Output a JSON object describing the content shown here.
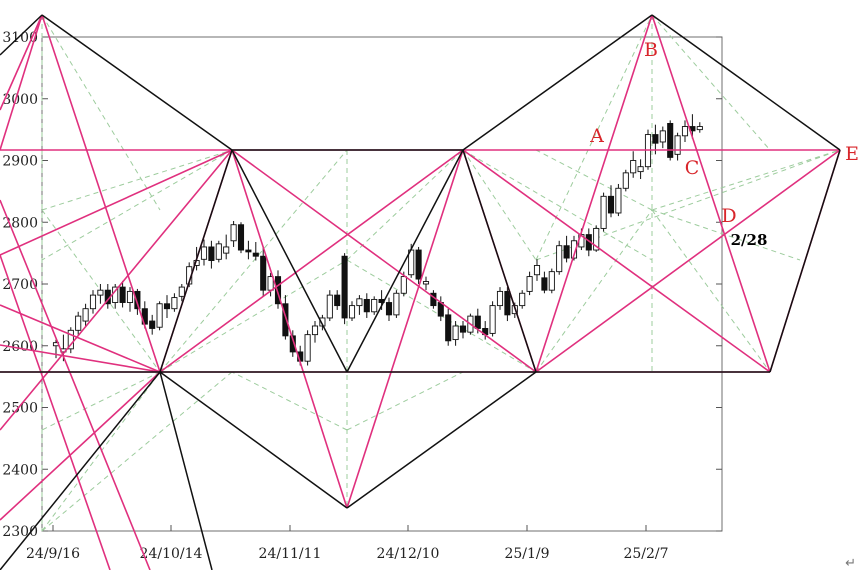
{
  "chart_data": {
    "type": "candlestick",
    "title": "",
    "y_ticks": [
      "3100",
      "3000",
      "2900",
      "2800",
      "2700",
      "2600",
      "2500",
      "2400",
      "2300"
    ],
    "x_ticks": [
      "24/9/16",
      "24/10/14",
      "24/11/11",
      "24/12/10",
      "25/1/9",
      "25/2/7"
    ],
    "ylim": [
      2300,
      3100
    ],
    "grid": false,
    "annotations": [
      {
        "label": "A",
        "price": 2935
      },
      {
        "label": "B",
        "price": 3080
      },
      {
        "label": "C",
        "price": 2890
      },
      {
        "label": "D",
        "price": 2808
      },
      {
        "label": "E",
        "price": 2915
      },
      {
        "label": "2/28",
        "price": 2785
      }
    ],
    "series": [
      {
        "candles": [
          [
            2600,
            2610,
            2580,
            2605
          ],
          [
            2590,
            2618,
            2575,
            2595
          ],
          [
            2595,
            2630,
            2588,
            2625
          ],
          [
            2625,
            2655,
            2618,
            2648
          ],
          [
            2640,
            2668,
            2630,
            2660
          ],
          [
            2660,
            2690,
            2652,
            2682
          ],
          [
            2682,
            2700,
            2668,
            2690
          ],
          [
            2690,
            2700,
            2660,
            2668
          ],
          [
            2670,
            2700,
            2660,
            2695
          ],
          [
            2695,
            2705,
            2662,
            2670
          ],
          [
            2670,
            2695,
            2655,
            2688
          ],
          [
            2688,
            2692,
            2650,
            2660
          ],
          [
            2660,
            2672,
            2628,
            2635
          ],
          [
            2640,
            2650,
            2618,
            2628
          ],
          [
            2630,
            2672,
            2625,
            2668
          ],
          [
            2668,
            2682,
            2645,
            2660
          ],
          [
            2660,
            2685,
            2655,
            2678
          ],
          [
            2680,
            2700,
            2672,
            2695
          ],
          [
            2700,
            2735,
            2695,
            2728
          ],
          [
            2730,
            2760,
            2722,
            2738
          ],
          [
            2740,
            2772,
            2730,
            2760
          ],
          [
            2760,
            2770,
            2725,
            2738
          ],
          [
            2740,
            2770,
            2735,
            2765
          ],
          [
            2750,
            2780,
            2740,
            2760
          ],
          [
            2770,
            2802,
            2760,
            2796
          ],
          [
            2796,
            2800,
            2750,
            2755
          ],
          [
            2755,
            2770,
            2740,
            2752
          ],
          [
            2750,
            2768,
            2738,
            2745
          ],
          [
            2745,
            2760,
            2680,
            2690
          ],
          [
            2690,
            2718,
            2680,
            2712
          ],
          [
            2712,
            2722,
            2660,
            2668
          ],
          [
            2668,
            2682,
            2610,
            2616
          ],
          [
            2616,
            2625,
            2582,
            2590
          ],
          [
            2590,
            2600,
            2568,
            2575
          ],
          [
            2575,
            2625,
            2568,
            2618
          ],
          [
            2618,
            2640,
            2605,
            2632
          ],
          [
            2632,
            2650,
            2625,
            2645
          ],
          [
            2645,
            2690,
            2640,
            2682
          ],
          [
            2682,
            2690,
            2658,
            2665
          ],
          [
            2745,
            2750,
            2635,
            2645
          ],
          [
            2645,
            2672,
            2640,
            2665
          ],
          [
            2665,
            2682,
            2650,
            2676
          ],
          [
            2675,
            2685,
            2645,
            2655
          ],
          [
            2655,
            2680,
            2650,
            2675
          ],
          [
            2675,
            2690,
            2658,
            2670
          ],
          [
            2670,
            2678,
            2640,
            2650
          ],
          [
            2650,
            2690,
            2645,
            2685
          ],
          [
            2685,
            2720,
            2680,
            2712
          ],
          [
            2715,
            2765,
            2710,
            2755
          ],
          [
            2755,
            2760,
            2700,
            2708
          ],
          [
            2700,
            2712,
            2690,
            2704
          ],
          [
            2685,
            2690,
            2660,
            2665
          ],
          [
            2670,
            2680,
            2640,
            2648
          ],
          [
            2650,
            2660,
            2600,
            2608
          ],
          [
            2610,
            2640,
            2600,
            2632
          ],
          [
            2632,
            2640,
            2612,
            2622
          ],
          [
            2622,
            2652,
            2618,
            2648
          ],
          [
            2648,
            2660,
            2620,
            2628
          ],
          [
            2628,
            2640,
            2610,
            2618
          ],
          [
            2620,
            2672,
            2615,
            2665
          ],
          [
            2665,
            2695,
            2658,
            2688
          ],
          [
            2688,
            2695,
            2640,
            2650
          ],
          [
            2652,
            2670,
            2645,
            2665
          ],
          [
            2665,
            2690,
            2660,
            2685
          ],
          [
            2688,
            2720,
            2682,
            2712
          ],
          [
            2715,
            2740,
            2705,
            2730
          ],
          [
            2710,
            2720,
            2685,
            2690
          ],
          [
            2690,
            2725,
            2685,
            2720
          ],
          [
            2720,
            2770,
            2715,
            2762
          ],
          [
            2762,
            2778,
            2735,
            2742
          ],
          [
            2742,
            2778,
            2738,
            2770
          ],
          [
            2760,
            2790,
            2755,
            2780
          ],
          [
            2780,
            2790,
            2745,
            2755
          ],
          [
            2755,
            2795,
            2752,
            2790
          ],
          [
            2790,
            2848,
            2785,
            2842
          ],
          [
            2842,
            2860,
            2808,
            2815
          ],
          [
            2815,
            2862,
            2810,
            2855
          ],
          [
            2855,
            2885,
            2850,
            2880
          ],
          [
            2880,
            2915,
            2872,
            2900
          ],
          [
            2882,
            2902,
            2870,
            2890
          ],
          [
            2890,
            2950,
            2885,
            2942
          ],
          [
            2942,
            2958,
            2910,
            2928
          ],
          [
            2930,
            2955,
            2920,
            2948
          ],
          [
            2960,
            2965,
            2900,
            2905
          ],
          [
            2910,
            2945,
            2900,
            2940
          ],
          [
            2940,
            2965,
            2930,
            2955
          ],
          [
            2955,
            2975,
            2935,
            2948
          ],
          [
            2950,
            2962,
            2945,
            2955
          ]
        ]
      }
    ]
  },
  "return_symbol": "↵"
}
